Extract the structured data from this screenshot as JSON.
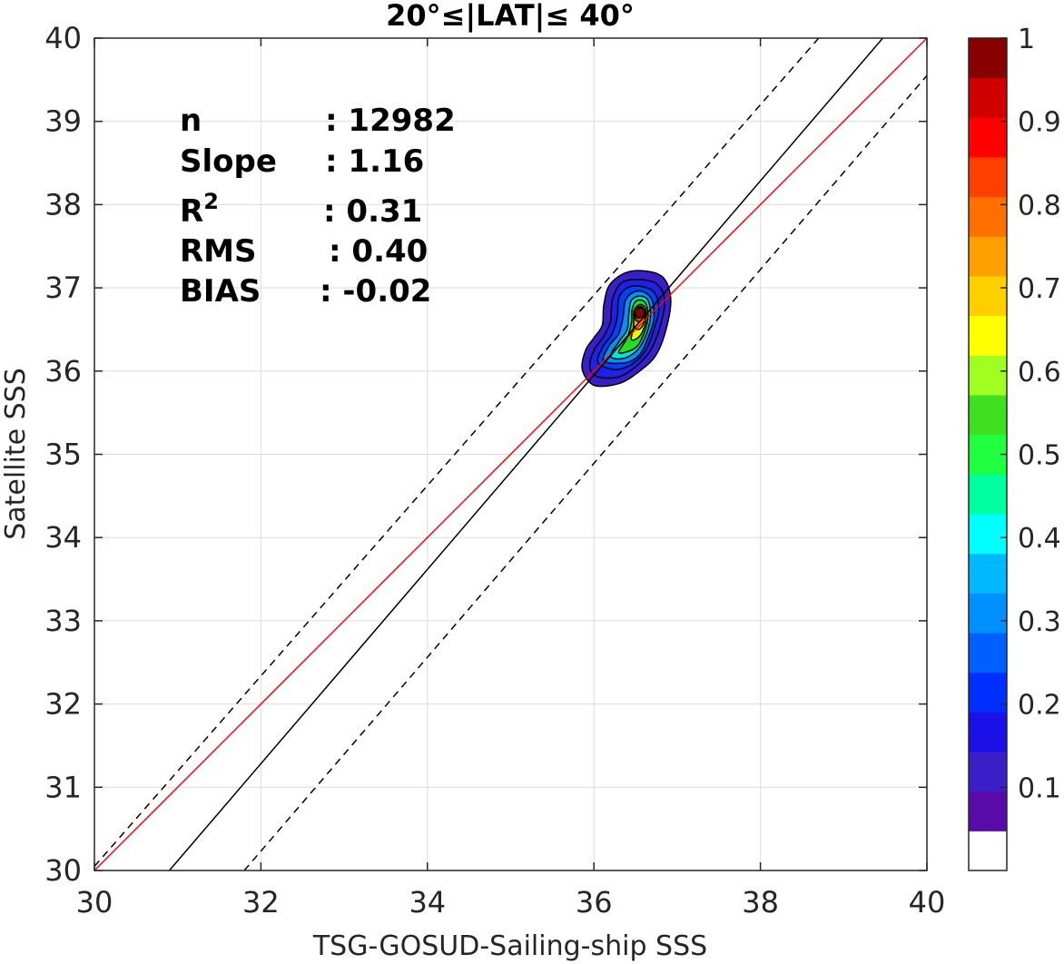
{
  "chart_data": {
    "type": "contour",
    "title": "20°≤|LAT|≤ 40°",
    "xlabel": "TSG-GOSUD-Sailing-ship SSS",
    "ylabel": "Satellite SSS",
    "xlim": [
      30,
      40
    ],
    "ylim": [
      30,
      40
    ],
    "xticks": [
      30,
      32,
      34,
      36,
      38,
      40
    ],
    "yticks": [
      30,
      31,
      32,
      33,
      34,
      35,
      36,
      37,
      38,
      39,
      40
    ],
    "grid": true,
    "stats": [
      {
        "label": "n",
        "sep": ": ",
        "value": "12982"
      },
      {
        "label": "Slope",
        "sep": ": ",
        "value": "1.16"
      },
      {
        "label": "R",
        "sup": "2",
        "sep": ": ",
        "value": "0.31"
      },
      {
        "label": "RMS",
        "sep": ": ",
        "value": "0.40"
      },
      {
        "label": "BIAS",
        "sep": ": ",
        "value": "-0.02"
      }
    ],
    "lines": [
      {
        "name": "one-to-one",
        "color": "#ff0000",
        "dash": false,
        "x": [
          30,
          40
        ],
        "y": [
          30,
          40
        ]
      },
      {
        "name": "regression",
        "color": "#000000",
        "dash": false,
        "x": [
          30.9,
          39.47
        ],
        "y": [
          30,
          40
        ]
      },
      {
        "name": "upper-bound",
        "color": "#000000",
        "dash": true,
        "x": [
          30,
          38.7
        ],
        "y": [
          30.05,
          40
        ]
      },
      {
        "name": "lower-bound",
        "color": "#000000",
        "dash": true,
        "x": [
          31.8,
          40
        ],
        "y": [
          30,
          39.55
        ]
      }
    ],
    "density_peak": {
      "x": 36.55,
      "y": 36.7,
      "value": 1.0
    },
    "contours": [
      {
        "level": 0.05,
        "color": "#3a1fc8",
        "points": [
          [
            35.86,
            36.02
          ],
          [
            35.9,
            36.25
          ],
          [
            36.0,
            36.4
          ],
          [
            36.1,
            36.55
          ],
          [
            36.12,
            36.8
          ],
          [
            36.2,
            37.05
          ],
          [
            36.45,
            37.2
          ],
          [
            36.8,
            37.15
          ],
          [
            36.92,
            36.9
          ],
          [
            36.88,
            36.55
          ],
          [
            36.75,
            36.2
          ],
          [
            36.55,
            36.0
          ],
          [
            36.3,
            35.85
          ],
          [
            36.0,
            35.83
          ]
        ]
      },
      {
        "level": 0.1,
        "color": "#2020e6",
        "points": [
          [
            35.95,
            36.05
          ],
          [
            36.0,
            36.25
          ],
          [
            36.12,
            36.42
          ],
          [
            36.2,
            36.6
          ],
          [
            36.22,
            36.85
          ],
          [
            36.32,
            37.05
          ],
          [
            36.5,
            37.1
          ],
          [
            36.75,
            37.05
          ],
          [
            36.85,
            36.85
          ],
          [
            36.8,
            36.55
          ],
          [
            36.68,
            36.25
          ],
          [
            36.5,
            36.05
          ],
          [
            36.3,
            35.93
          ],
          [
            36.05,
            35.93
          ]
        ]
      },
      {
        "level": 0.2,
        "color": "#0040ff",
        "points": [
          [
            36.05,
            36.1
          ],
          [
            36.1,
            36.28
          ],
          [
            36.22,
            36.45
          ],
          [
            36.28,
            36.65
          ],
          [
            36.3,
            36.88
          ],
          [
            36.4,
            37.0
          ],
          [
            36.55,
            37.02
          ],
          [
            36.72,
            36.95
          ],
          [
            36.78,
            36.75
          ],
          [
            36.72,
            36.5
          ],
          [
            36.62,
            36.25
          ],
          [
            36.45,
            36.08
          ],
          [
            36.25,
            36.02
          ]
        ]
      },
      {
        "level": 0.3,
        "color": "#0090ff",
        "points": [
          [
            36.12,
            36.12
          ],
          [
            36.18,
            36.3
          ],
          [
            36.3,
            36.45
          ],
          [
            36.35,
            36.65
          ],
          [
            36.38,
            36.85
          ],
          [
            36.48,
            36.95
          ],
          [
            36.6,
            36.95
          ],
          [
            36.7,
            36.85
          ],
          [
            36.72,
            36.62
          ],
          [
            36.65,
            36.4
          ],
          [
            36.55,
            36.2
          ],
          [
            36.38,
            36.1
          ]
        ]
      },
      {
        "level": 0.4,
        "color": "#00e5d0",
        "points": [
          [
            36.2,
            36.18
          ],
          [
            36.3,
            36.35
          ],
          [
            36.4,
            36.5
          ],
          [
            36.42,
            36.7
          ],
          [
            36.45,
            36.85
          ],
          [
            36.55,
            36.9
          ],
          [
            36.65,
            36.85
          ],
          [
            36.68,
            36.65
          ],
          [
            36.62,
            36.42
          ],
          [
            36.52,
            36.25
          ],
          [
            36.35,
            36.15
          ]
        ]
      },
      {
        "level": 0.5,
        "color": "#20e020",
        "points": [
          [
            36.3,
            36.22
          ],
          [
            36.4,
            36.4
          ],
          [
            36.45,
            36.58
          ],
          [
            36.46,
            36.75
          ],
          [
            36.52,
            36.85
          ],
          [
            36.62,
            36.82
          ],
          [
            36.65,
            36.65
          ],
          [
            36.6,
            36.45
          ],
          [
            36.5,
            36.28
          ]
        ]
      },
      {
        "level": 0.6,
        "color": "#e8ff00",
        "points": [
          [
            36.45,
            36.38
          ],
          [
            36.48,
            36.55
          ],
          [
            36.48,
            36.72
          ],
          [
            36.55,
            36.8
          ],
          [
            36.62,
            36.75
          ],
          [
            36.62,
            36.58
          ],
          [
            36.55,
            36.42
          ]
        ]
      },
      {
        "level": 0.7,
        "color": "#ffb000",
        "points": [
          [
            36.48,
            36.55
          ],
          [
            36.5,
            36.72
          ],
          [
            36.56,
            36.78
          ],
          [
            36.61,
            36.72
          ],
          [
            36.6,
            36.58
          ],
          [
            36.54,
            36.5
          ]
        ]
      },
      {
        "level": 0.8,
        "color": "#ff5000",
        "points": [
          [
            36.5,
            36.62
          ],
          [
            36.52,
            36.75
          ],
          [
            36.57,
            36.76
          ],
          [
            36.6,
            36.68
          ],
          [
            36.56,
            36.6
          ]
        ]
      },
      {
        "level": 0.9,
        "color": "#e00000",
        "points": [
          [
            36.52,
            36.64
          ],
          [
            36.53,
            36.74
          ],
          [
            36.57,
            36.74
          ],
          [
            36.58,
            36.66
          ]
        ]
      }
    ],
    "colorbar": {
      "min": 0,
      "max": 1,
      "tick_values": [
        0.1,
        0.2,
        0.3,
        0.4,
        0.5,
        0.6,
        0.7,
        0.8,
        0.9,
        1
      ],
      "tick_labels": [
        "0.1",
        "0.2",
        "0.3",
        "0.4",
        "0.5",
        "0.6",
        "0.7",
        "0.8",
        "0.9",
        "1"
      ],
      "colors": [
        "#ffffff",
        "#5a0aa8",
        "#3a1fc8",
        "#1a10e8",
        "#0030ff",
        "#0060ff",
        "#0090ff",
        "#00b8ff",
        "#00ffff",
        "#00ffa0",
        "#20ff40",
        "#40e020",
        "#a0ff20",
        "#ffff00",
        "#ffd000",
        "#ffa000",
        "#ff7000",
        "#ff4000",
        "#ff0000",
        "#d00000",
        "#880000"
      ]
    }
  }
}
